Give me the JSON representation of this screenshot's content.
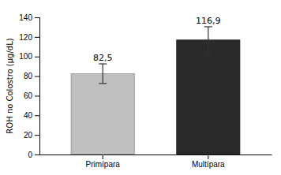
{
  "chart_data": {
    "type": "bar",
    "categories": [
      "Primípara",
      "Multípara"
    ],
    "values": [
      82.5,
      116.9
    ],
    "value_labels": [
      "82,5",
      "116,9"
    ],
    "errors": [
      10.0,
      13.5
    ],
    "colors": [
      "#c0c0c0",
      "#2a2a2a"
    ],
    "ylabel": "ROH no Colostro (µg/dL)",
    "ylim": [
      0,
      140
    ],
    "yticks": [
      0,
      20,
      40,
      60,
      80,
      100,
      120,
      140
    ],
    "data_labels": true,
    "grid": false
  }
}
